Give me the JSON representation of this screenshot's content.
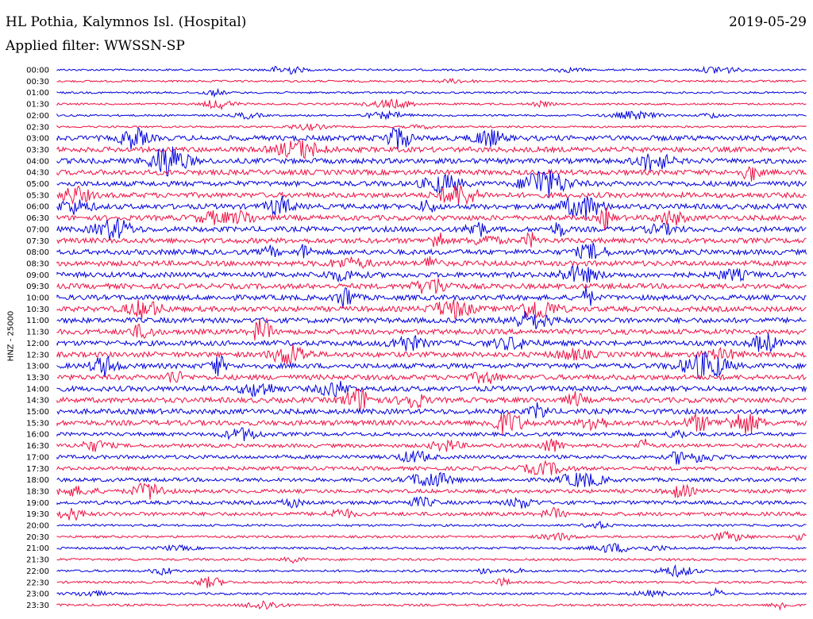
{
  "header": {
    "station": "HL Pothia, Kalymnos Isl. (Hospital)",
    "filter": "Applied filter: WWSSN-SP",
    "date": "2019-05-29"
  },
  "chart_data": {
    "type": "line",
    "title": "HL Pothia, Kalymnos Isl. (Hospital)",
    "subtitle": "Applied filter: WWSSN-SP",
    "date": "2019-05-29",
    "ylabel": "HNZ - 25000",
    "row_labels": [
      "00:00",
      "00:30",
      "01:00",
      "01:30",
      "02:00",
      "02:30",
      "03:00",
      "03:30",
      "04:00",
      "04:30",
      "05:00",
      "05:30",
      "06:00",
      "06:30",
      "07:00",
      "07:30",
      "08:00",
      "08:30",
      "09:00",
      "09:30",
      "10:00",
      "10:30",
      "11:00",
      "11:30",
      "12:00",
      "12:30",
      "13:00",
      "13:30",
      "14:00",
      "14:30",
      "15:00",
      "15:30",
      "16:00",
      "16:30",
      "17:00",
      "17:30",
      "18:00",
      "18:30",
      "19:00",
      "19:30",
      "20:00",
      "20:30",
      "21:00",
      "21:30",
      "22:00",
      "22:30",
      "23:00",
      "23:30"
    ],
    "colors": [
      "#0000dd",
      "#ee1144"
    ],
    "grid": false,
    "legend": "none"
  }
}
